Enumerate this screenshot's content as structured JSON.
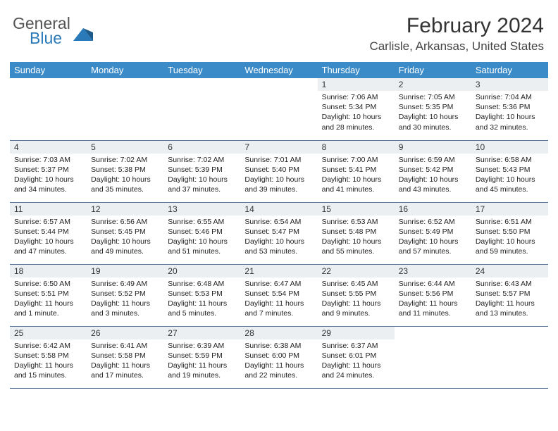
{
  "logo": {
    "text1": "General",
    "text2": "Blue"
  },
  "title": "February 2024",
  "location": "Carlisle, Arkansas, United States",
  "colors": {
    "header_bg": "#3b8bc8",
    "header_text": "#ffffff",
    "daynum_bg": "#eceff1",
    "border": "#5a7a9a",
    "logo_gray": "#555555",
    "logo_blue": "#2a7ab9"
  },
  "weekdays": [
    "Sunday",
    "Monday",
    "Tuesday",
    "Wednesday",
    "Thursday",
    "Friday",
    "Saturday"
  ],
  "weeks": [
    [
      null,
      null,
      null,
      null,
      {
        "n": "1",
        "sr": "Sunrise: 7:06 AM",
        "ss": "Sunset: 5:34 PM",
        "dl": "Daylight: 10 hours and 28 minutes."
      },
      {
        "n": "2",
        "sr": "Sunrise: 7:05 AM",
        "ss": "Sunset: 5:35 PM",
        "dl": "Daylight: 10 hours and 30 minutes."
      },
      {
        "n": "3",
        "sr": "Sunrise: 7:04 AM",
        "ss": "Sunset: 5:36 PM",
        "dl": "Daylight: 10 hours and 32 minutes."
      }
    ],
    [
      {
        "n": "4",
        "sr": "Sunrise: 7:03 AM",
        "ss": "Sunset: 5:37 PM",
        "dl": "Daylight: 10 hours and 34 minutes."
      },
      {
        "n": "5",
        "sr": "Sunrise: 7:02 AM",
        "ss": "Sunset: 5:38 PM",
        "dl": "Daylight: 10 hours and 35 minutes."
      },
      {
        "n": "6",
        "sr": "Sunrise: 7:02 AM",
        "ss": "Sunset: 5:39 PM",
        "dl": "Daylight: 10 hours and 37 minutes."
      },
      {
        "n": "7",
        "sr": "Sunrise: 7:01 AM",
        "ss": "Sunset: 5:40 PM",
        "dl": "Daylight: 10 hours and 39 minutes."
      },
      {
        "n": "8",
        "sr": "Sunrise: 7:00 AM",
        "ss": "Sunset: 5:41 PM",
        "dl": "Daylight: 10 hours and 41 minutes."
      },
      {
        "n": "9",
        "sr": "Sunrise: 6:59 AM",
        "ss": "Sunset: 5:42 PM",
        "dl": "Daylight: 10 hours and 43 minutes."
      },
      {
        "n": "10",
        "sr": "Sunrise: 6:58 AM",
        "ss": "Sunset: 5:43 PM",
        "dl": "Daylight: 10 hours and 45 minutes."
      }
    ],
    [
      {
        "n": "11",
        "sr": "Sunrise: 6:57 AM",
        "ss": "Sunset: 5:44 PM",
        "dl": "Daylight: 10 hours and 47 minutes."
      },
      {
        "n": "12",
        "sr": "Sunrise: 6:56 AM",
        "ss": "Sunset: 5:45 PM",
        "dl": "Daylight: 10 hours and 49 minutes."
      },
      {
        "n": "13",
        "sr": "Sunrise: 6:55 AM",
        "ss": "Sunset: 5:46 PM",
        "dl": "Daylight: 10 hours and 51 minutes."
      },
      {
        "n": "14",
        "sr": "Sunrise: 6:54 AM",
        "ss": "Sunset: 5:47 PM",
        "dl": "Daylight: 10 hours and 53 minutes."
      },
      {
        "n": "15",
        "sr": "Sunrise: 6:53 AM",
        "ss": "Sunset: 5:48 PM",
        "dl": "Daylight: 10 hours and 55 minutes."
      },
      {
        "n": "16",
        "sr": "Sunrise: 6:52 AM",
        "ss": "Sunset: 5:49 PM",
        "dl": "Daylight: 10 hours and 57 minutes."
      },
      {
        "n": "17",
        "sr": "Sunrise: 6:51 AM",
        "ss": "Sunset: 5:50 PM",
        "dl": "Daylight: 10 hours and 59 minutes."
      }
    ],
    [
      {
        "n": "18",
        "sr": "Sunrise: 6:50 AM",
        "ss": "Sunset: 5:51 PM",
        "dl": "Daylight: 11 hours and 1 minute."
      },
      {
        "n": "19",
        "sr": "Sunrise: 6:49 AM",
        "ss": "Sunset: 5:52 PM",
        "dl": "Daylight: 11 hours and 3 minutes."
      },
      {
        "n": "20",
        "sr": "Sunrise: 6:48 AM",
        "ss": "Sunset: 5:53 PM",
        "dl": "Daylight: 11 hours and 5 minutes."
      },
      {
        "n": "21",
        "sr": "Sunrise: 6:47 AM",
        "ss": "Sunset: 5:54 PM",
        "dl": "Daylight: 11 hours and 7 minutes."
      },
      {
        "n": "22",
        "sr": "Sunrise: 6:45 AM",
        "ss": "Sunset: 5:55 PM",
        "dl": "Daylight: 11 hours and 9 minutes."
      },
      {
        "n": "23",
        "sr": "Sunrise: 6:44 AM",
        "ss": "Sunset: 5:56 PM",
        "dl": "Daylight: 11 hours and 11 minutes."
      },
      {
        "n": "24",
        "sr": "Sunrise: 6:43 AM",
        "ss": "Sunset: 5:57 PM",
        "dl": "Daylight: 11 hours and 13 minutes."
      }
    ],
    [
      {
        "n": "25",
        "sr": "Sunrise: 6:42 AM",
        "ss": "Sunset: 5:58 PM",
        "dl": "Daylight: 11 hours and 15 minutes."
      },
      {
        "n": "26",
        "sr": "Sunrise: 6:41 AM",
        "ss": "Sunset: 5:58 PM",
        "dl": "Daylight: 11 hours and 17 minutes."
      },
      {
        "n": "27",
        "sr": "Sunrise: 6:39 AM",
        "ss": "Sunset: 5:59 PM",
        "dl": "Daylight: 11 hours and 19 minutes."
      },
      {
        "n": "28",
        "sr": "Sunrise: 6:38 AM",
        "ss": "Sunset: 6:00 PM",
        "dl": "Daylight: 11 hours and 22 minutes."
      },
      {
        "n": "29",
        "sr": "Sunrise: 6:37 AM",
        "ss": "Sunset: 6:01 PM",
        "dl": "Daylight: 11 hours and 24 minutes."
      },
      null,
      null
    ]
  ]
}
